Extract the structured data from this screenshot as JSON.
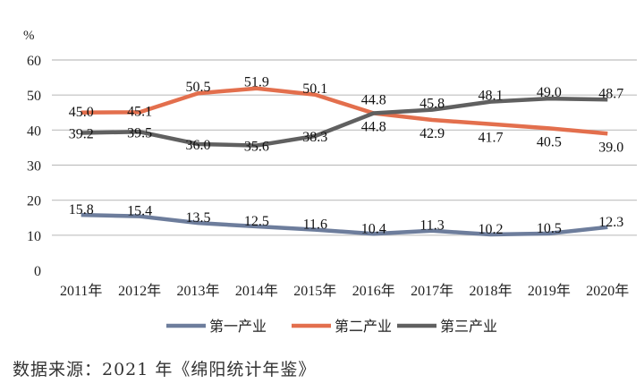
{
  "chart_data": {
    "type": "line",
    "ylabel": "%",
    "ylim": [
      0,
      60
    ],
    "yticks": [
      0,
      10,
      20,
      30,
      40,
      50,
      60
    ],
    "grid": true,
    "legend_placement": "bottom",
    "categories": [
      "2011年",
      "2012年",
      "2013年",
      "2014年",
      "2015年",
      "2016年",
      "2017年",
      "2018年",
      "2019年",
      "2020年"
    ],
    "series": [
      {
        "name": "第一产业",
        "color": "#6d7d9c",
        "values": [
          15.8,
          15.4,
          13.5,
          12.5,
          11.6,
          10.4,
          11.3,
          10.2,
          10.5,
          12.3
        ]
      },
      {
        "name": "第二产业",
        "color": "#e36f4d",
        "values": [
          45.0,
          45.1,
          50.5,
          51.9,
          50.1,
          44.8,
          42.9,
          41.7,
          40.5,
          39.0
        ]
      },
      {
        "name": "第三产业",
        "color": "#606060",
        "values": [
          39.2,
          39.5,
          36.0,
          35.6,
          38.3,
          44.8,
          45.8,
          48.1,
          49.0,
          48.7
        ]
      }
    ]
  },
  "caption": "数据来源：2021 年《绵阳统计年鉴》"
}
